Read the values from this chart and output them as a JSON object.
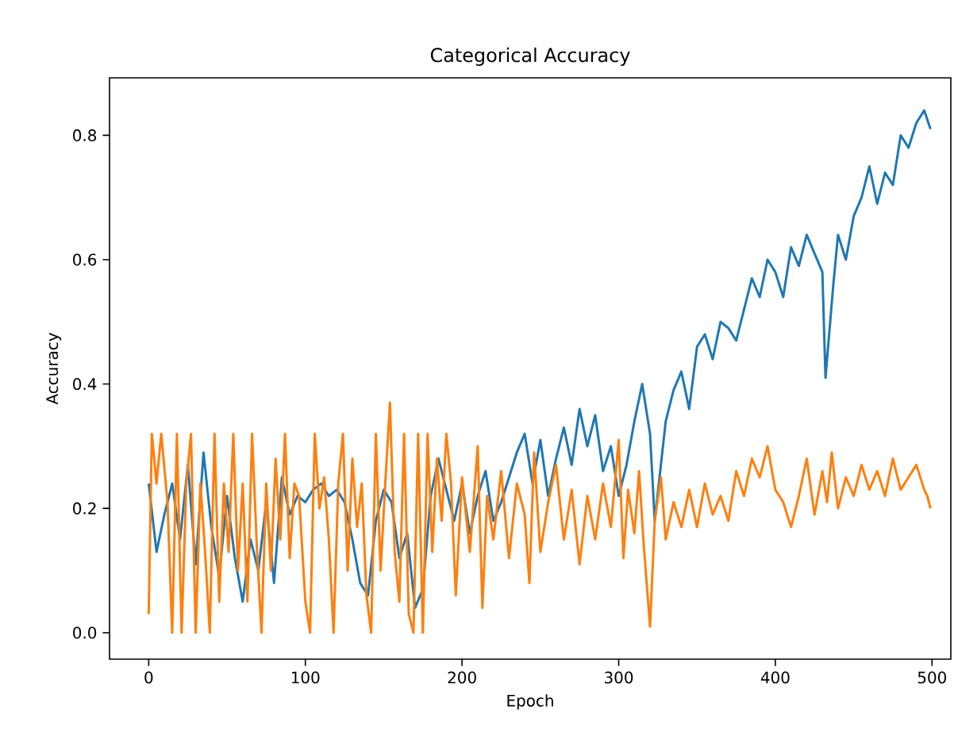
{
  "chart_data": {
    "type": "line",
    "title": "Categorical Accuracy",
    "xlabel": "Epoch",
    "ylabel": "Accuracy",
    "xlim": [
      -25,
      512
    ],
    "ylim": [
      -0.0425,
      0.8925
    ],
    "xticks": [
      0,
      100,
      200,
      300,
      400,
      500
    ],
    "yticks": [
      {
        "value": 0,
        "label": "0.0"
      },
      {
        "value": 0.2,
        "label": "0.2"
      },
      {
        "value": 0.4,
        "label": "0.4"
      },
      {
        "value": 0.6,
        "label": "0.6"
      },
      {
        "value": 0.8,
        "label": "0.8"
      }
    ],
    "line_style": "solid",
    "marker": "none",
    "series": [
      {
        "color": "#1f77b4",
        "x": [
          0,
          5,
          10,
          15,
          20,
          25,
          30,
          35,
          40,
          45,
          50,
          55,
          60,
          65,
          70,
          75,
          80,
          85,
          90,
          95,
          100,
          105,
          110,
          115,
          120,
          125,
          130,
          135,
          140,
          145,
          150,
          155,
          160,
          165,
          170,
          175,
          180,
          185,
          190,
          195,
          200,
          205,
          210,
          215,
          220,
          225,
          230,
          235,
          240,
          245,
          250,
          255,
          260,
          265,
          270,
          275,
          280,
          285,
          290,
          295,
          300,
          305,
          310,
          315,
          320,
          323,
          330,
          335,
          340,
          345,
          350,
          355,
          360,
          365,
          370,
          375,
          380,
          385,
          390,
          395,
          400,
          405,
          410,
          415,
          420,
          425,
          430,
          432,
          437,
          440,
          445,
          450,
          455,
          460,
          465,
          470,
          475,
          480,
          485,
          490,
          495,
          499
        ],
        "values": [
          0.24,
          0.13,
          0.19,
          0.24,
          0.15,
          0.27,
          0.11,
          0.29,
          0.17,
          0.09,
          0.22,
          0.12,
          0.05,
          0.15,
          0.1,
          0.21,
          0.08,
          0.25,
          0.19,
          0.22,
          0.21,
          0.23,
          0.24,
          0.22,
          0.23,
          0.21,
          0.15,
          0.08,
          0.06,
          0.18,
          0.23,
          0.21,
          0.12,
          0.16,
          0.04,
          0.07,
          0.22,
          0.28,
          0.23,
          0.18,
          0.24,
          0.16,
          0.22,
          0.26,
          0.18,
          0.21,
          0.25,
          0.29,
          0.32,
          0.24,
          0.31,
          0.22,
          0.28,
          0.33,
          0.27,
          0.36,
          0.3,
          0.35,
          0.26,
          0.3,
          0.22,
          0.27,
          0.34,
          0.4,
          0.32,
          0.18,
          0.34,
          0.39,
          0.42,
          0.36,
          0.46,
          0.48,
          0.44,
          0.5,
          0.49,
          0.47,
          0.52,
          0.57,
          0.54,
          0.6,
          0.58,
          0.54,
          0.62,
          0.59,
          0.64,
          0.61,
          0.58,
          0.41,
          0.56,
          0.64,
          0.6,
          0.67,
          0.7,
          0.75,
          0.69,
          0.74,
          0.72,
          0.8,
          0.78,
          0.82,
          0.84,
          0.81
        ]
      },
      {
        "color": "#ff7f0e",
        "x": [
          0,
          2,
          5,
          8,
          12,
          15,
          18,
          21,
          24,
          27,
          30,
          33,
          36,
          39,
          42,
          45,
          48,
          51,
          54,
          57,
          60,
          63,
          66,
          69,
          72,
          75,
          78,
          81,
          84,
          87,
          90,
          93,
          96,
          100,
          103,
          106,
          109,
          112,
          115,
          118,
          121,
          124,
          127,
          130,
          133,
          136,
          139,
          142,
          145,
          148,
          151,
          154,
          157,
          160,
          163,
          166,
          169,
          172,
          175,
          178,
          181,
          184,
          187,
          190,
          193,
          196,
          200,
          205,
          210,
          213,
          216,
          220,
          225,
          230,
          235,
          240,
          243,
          246,
          250,
          255,
          260,
          265,
          270,
          275,
          280,
          285,
          290,
          295,
          300,
          303,
          306,
          310,
          313,
          316,
          320,
          323,
          327,
          330,
          335,
          340,
          345,
          350,
          355,
          360,
          365,
          370,
          375,
          380,
          385,
          390,
          395,
          400,
          405,
          410,
          415,
          420,
          425,
          430,
          433,
          436,
          440,
          445,
          450,
          455,
          460,
          465,
          470,
          475,
          480,
          485,
          490,
          495,
          497,
          499
        ],
        "values": [
          0.03,
          0.32,
          0.24,
          0.32,
          0.21,
          0,
          0.32,
          0,
          0.24,
          0.32,
          0,
          0.24,
          0.13,
          0,
          0.32,
          0.05,
          0.24,
          0.13,
          0.32,
          0.1,
          0.24,
          0.05,
          0.32,
          0.14,
          0,
          0.24,
          0.1,
          0.28,
          0.15,
          0.32,
          0.12,
          0.24,
          0.22,
          0.05,
          0,
          0.32,
          0.2,
          0.25,
          0.15,
          0,
          0.24,
          0.32,
          0.1,
          0.28,
          0.17,
          0.24,
          0.06,
          0,
          0.32,
          0.1,
          0.24,
          0.37,
          0.13,
          0.05,
          0.32,
          0.03,
          0,
          0.32,
          0,
          0.32,
          0.13,
          0.28,
          0.18,
          0.32,
          0.24,
          0.06,
          0.25,
          0.13,
          0.3,
          0.04,
          0.22,
          0.15,
          0.26,
          0.12,
          0.24,
          0.19,
          0.08,
          0.29,
          0.13,
          0.21,
          0.27,
          0.15,
          0.23,
          0.11,
          0.22,
          0.15,
          0.24,
          0.17,
          0.31,
          0.12,
          0.23,
          0.16,
          0.26,
          0.14,
          0.01,
          0.18,
          0.25,
          0.15,
          0.21,
          0.17,
          0.23,
          0.17,
          0.24,
          0.19,
          0.22,
          0.18,
          0.26,
          0.22,
          0.28,
          0.25,
          0.3,
          0.23,
          0.21,
          0.17,
          0.22,
          0.28,
          0.19,
          0.26,
          0.21,
          0.29,
          0.2,
          0.25,
          0.22,
          0.27,
          0.23,
          0.26,
          0.22,
          0.28,
          0.23,
          0.25,
          0.27,
          0.23,
          0.22,
          0.2
        ]
      }
    ]
  }
}
